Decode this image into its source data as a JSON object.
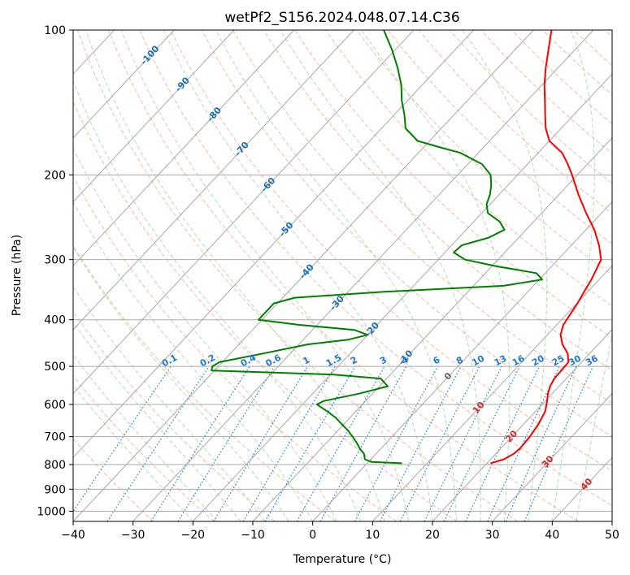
{
  "chart_data": {
    "type": "line",
    "subtype": "skew-t log-p diagram",
    "title": "wetPf2_S156.2024.048.07.14.C36",
    "xlabel": "Temperature (°C)",
    "ylabel": "Pressure (hPa)",
    "xlim": [
      -40,
      50
    ],
    "ylim": [
      1050,
      100
    ],
    "y_scale": "log",
    "grid": true,
    "x_ticks": [
      -40,
      -30,
      -20,
      -10,
      0,
      10,
      20,
      30,
      40,
      50
    ],
    "x_tick_labels": [
      "−40",
      "−30",
      "−20",
      "−10",
      "0",
      "10",
      "20",
      "30",
      "40",
      "50"
    ],
    "y_ticks": [
      1000,
      900,
      800,
      700,
      600,
      500,
      400,
      300,
      200,
      100
    ],
    "y_tick_labels": [
      "1000",
      "900",
      "800",
      "700",
      "600",
      "500",
      "400",
      "300",
      "200",
      "100"
    ],
    "series": [
      {
        "key": "temperature",
        "color": "#ff0000",
        "points": [
          [
            795,
            20.6
          ],
          [
            780,
            22.2
          ],
          [
            760,
            23.0
          ],
          [
            740,
            23.2
          ],
          [
            700,
            23.0
          ],
          [
            660,
            22.5
          ],
          [
            620,
            21.6
          ],
          [
            590,
            20.3
          ],
          [
            570,
            19.3
          ],
          [
            550,
            18.5
          ],
          [
            530,
            18.0
          ],
          [
            510,
            17.9
          ],
          [
            490,
            17.8
          ],
          [
            470,
            16.3
          ],
          [
            450,
            14.0
          ],
          [
            430,
            12.2
          ],
          [
            410,
            11.1
          ],
          [
            390,
            10.6
          ],
          [
            370,
            10.1
          ],
          [
            350,
            9.4
          ],
          [
            330,
            8.7
          ],
          [
            300,
            7.2
          ],
          [
            280,
            4.6
          ],
          [
            260,
            1.4
          ],
          [
            240,
            -2.6
          ],
          [
            220,
            -6.7
          ],
          [
            200,
            -10.9
          ],
          [
            190,
            -13.3
          ],
          [
            180,
            -16.0
          ],
          [
            170,
            -20.0
          ],
          [
            160,
            -22.6
          ],
          [
            150,
            -24.8
          ],
          [
            140,
            -27.1
          ],
          [
            130,
            -29.6
          ],
          [
            120,
            -32.0
          ],
          [
            110,
            -34.4
          ],
          [
            100,
            -37.0
          ]
        ]
      },
      {
        "key": "dewpoint",
        "color": "#008000",
        "points": [
          [
            795,
            5.8
          ],
          [
            790,
            0.5
          ],
          [
            780,
            -1.0
          ],
          [
            760,
            -2.0
          ],
          [
            740,
            -3.6
          ],
          [
            720,
            -5.0
          ],
          [
            700,
            -6.6
          ],
          [
            680,
            -8.3
          ],
          [
            660,
            -10.3
          ],
          [
            640,
            -12.3
          ],
          [
            620,
            -14.8
          ],
          [
            600,
            -17.6
          ],
          [
            590,
            -17.0
          ],
          [
            570,
            -12.3
          ],
          [
            550,
            -8.6
          ],
          [
            530,
            -11.0
          ],
          [
            520,
            -19.5
          ],
          [
            510,
            -40.5
          ],
          [
            500,
            -41.0
          ],
          [
            490,
            -40.5
          ],
          [
            470,
            -34.5
          ],
          [
            450,
            -28.5
          ],
          [
            440,
            -22.5
          ],
          [
            430,
            -20.0
          ],
          [
            420,
            -23.0
          ],
          [
            410,
            -33.0
          ],
          [
            400,
            -40.6
          ],
          [
            385,
            -40.6
          ],
          [
            370,
            -40.6
          ],
          [
            360,
            -38.0
          ],
          [
            350,
            -24.0
          ],
          [
            340,
            -5.0
          ],
          [
            330,
            0.5
          ],
          [
            320,
            -1.5
          ],
          [
            310,
            -9.0
          ],
          [
            300,
            -15.5
          ],
          [
            290,
            -18.5
          ],
          [
            280,
            -18.3
          ],
          [
            270,
            -15.0
          ],
          [
            260,
            -13.6
          ],
          [
            250,
            -15.7
          ],
          [
            240,
            -19.0
          ],
          [
            230,
            -20.6
          ],
          [
            220,
            -21.5
          ],
          [
            210,
            -22.8
          ],
          [
            200,
            -24.5
          ],
          [
            190,
            -27.6
          ],
          [
            180,
            -33.0
          ],
          [
            175,
            -37.5
          ],
          [
            170,
            -42.0
          ],
          [
            160,
            -46.0
          ],
          [
            150,
            -48.3
          ],
          [
            140,
            -51.0
          ],
          [
            130,
            -53.5
          ],
          [
            120,
            -56.7
          ],
          [
            110,
            -60.5
          ],
          [
            100,
            -65.0
          ]
        ]
      }
    ],
    "reference_lines": {
      "dry_adiabat_color": "#f4a582",
      "moist_adiabat_color": "#88cc88",
      "mixing_ratio_color": "#1f77d4",
      "isotherm_color": "#999999",
      "tan_color": "#d2b48c"
    },
    "mixing_ratio_labels": [
      "0.1",
      "0.2",
      "0.4",
      "0.6",
      "1",
      "1.5",
      "2",
      "3",
      "4",
      "6",
      "8",
      "10",
      "13",
      "16",
      "20",
      "25",
      "30",
      "36"
    ],
    "isotherm_labels": {
      "blue": [
        "-100",
        "-90",
        "-80",
        "-70",
        "-60",
        "-50",
        "-40",
        "-30",
        "-20",
        "-10"
      ],
      "gray": [
        "0"
      ],
      "red": [
        "10",
        "20",
        "30",
        "40"
      ]
    }
  }
}
